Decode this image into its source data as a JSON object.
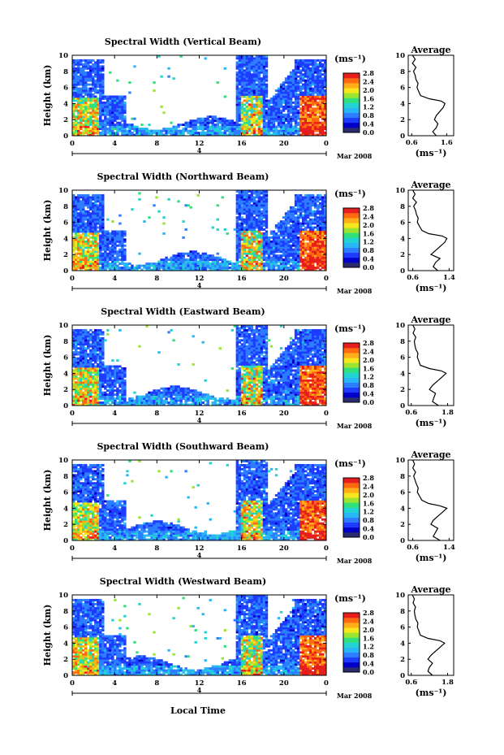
{
  "figure": {
    "xlabel": "Local Time",
    "date_label": "Mar 2008",
    "day_label": "4",
    "cbar_unit": "(ms⁻¹)",
    "avg_title": "Average",
    "avg_unit": "(ms⁻¹)",
    "ylabel": "Height (km)"
  },
  "colors": {
    "colormap": [
      "#2a2a6e",
      "#0000c8",
      "#1e3cff",
      "#2c7dff",
      "#29b6f6",
      "#22d3d3",
      "#31e07a",
      "#9be431",
      "#f5e61e",
      "#ffae1a",
      "#ff6a10",
      "#e61e1e"
    ]
  },
  "chart_data": [
    {
      "type": "heatmap",
      "title": "Spectral Width (Vertical Beam)",
      "x_ticks": [
        "0",
        "4",
        "8",
        "12",
        "16",
        "20",
        "0"
      ],
      "y_ticks": [
        "0",
        "2",
        "4",
        "6",
        "8",
        "10"
      ],
      "xlim": [
        0,
        24
      ],
      "ylim": [
        0,
        10
      ],
      "colorbar": {
        "ticks": [
          "0.0",
          "0.4",
          "0.8",
          "1.2",
          "1.6",
          "2.0",
          "2.4",
          "2.8"
        ],
        "range": [
          0,
          2.8
        ]
      },
      "average_profile": {
        "x_ticks": [
          "0.6",
          "1.6"
        ],
        "xlim": [
          0.5,
          1.8
        ],
        "height": [
          0,
          0.5,
          1,
          1.5,
          2,
          2.5,
          3,
          3.5,
          4,
          4.3,
          4.6,
          5,
          5.5,
          6,
          6.5,
          7,
          7.5,
          8,
          8.5,
          9,
          9.5,
          10
        ],
        "value": [
          1.3,
          1.2,
          1.3,
          1.35,
          1.25,
          1.3,
          1.4,
          1.5,
          1.55,
          1.45,
          1.1,
          0.85,
          0.8,
          0.75,
          0.78,
          0.72,
          0.7,
          0.65,
          0.72,
          0.62,
          0.7,
          0.62
        ]
      }
    },
    {
      "type": "heatmap",
      "title": "Spectral Width (Northward Beam)",
      "x_ticks": [
        "0",
        "4",
        "8",
        "12",
        "16",
        "20",
        "0"
      ],
      "y_ticks": [
        "0",
        "2",
        "4",
        "6",
        "8",
        "10"
      ],
      "xlim": [
        0,
        24
      ],
      "ylim": [
        0,
        10
      ],
      "colorbar": {
        "ticks": [
          "0.0",
          "0.4",
          "0.8",
          "1.2",
          "1.6",
          "2.0",
          "2.4",
          "2.8"
        ],
        "range": [
          0,
          2.8
        ]
      },
      "average_profile": {
        "x_ticks": [
          "0.6",
          "1.4"
        ],
        "xlim": [
          0.5,
          1.5
        ],
        "height": [
          0,
          0.5,
          1,
          1.5,
          2,
          2.5,
          3,
          3.5,
          4,
          4.3,
          4.6,
          5,
          5.5,
          6,
          6.5,
          7,
          7.5,
          8,
          8.5,
          9,
          9.5,
          10
        ],
        "value": [
          1.15,
          1.05,
          1.1,
          1.2,
          1.0,
          1.1,
          1.2,
          1.3,
          1.35,
          1.25,
          0.95,
          0.8,
          0.75,
          0.7,
          0.72,
          0.68,
          0.66,
          0.62,
          0.68,
          0.6,
          0.65,
          0.6
        ]
      }
    },
    {
      "type": "heatmap",
      "title": "Spectral Width (Eastward Beam)",
      "x_ticks": [
        "0",
        "4",
        "8",
        "12",
        "16",
        "20",
        "0"
      ],
      "y_ticks": [
        "0",
        "2",
        "4",
        "6",
        "8",
        "10"
      ],
      "xlim": [
        0,
        24
      ],
      "ylim": [
        0,
        10
      ],
      "colorbar": {
        "ticks": [
          "0.0",
          "0.4",
          "0.8",
          "1.2",
          "1.6",
          "2.0",
          "2.4",
          "2.8"
        ],
        "range": [
          0,
          2.8
        ]
      },
      "average_profile": {
        "x_ticks": [
          "0.6",
          "1.8"
        ],
        "xlim": [
          0.5,
          2.0
        ],
        "height": [
          0,
          0.5,
          1,
          1.5,
          2,
          2.5,
          3,
          3.5,
          4,
          4.3,
          4.6,
          5,
          5.5,
          6,
          6.5,
          7,
          7.5,
          8,
          8.5,
          9,
          9.5,
          10
        ],
        "value": [
          1.5,
          1.3,
          1.35,
          1.4,
          1.2,
          1.3,
          1.45,
          1.6,
          1.75,
          1.6,
          1.2,
          0.9,
          0.85,
          0.8,
          0.82,
          0.75,
          0.72,
          0.7,
          0.75,
          0.66,
          0.72,
          0.65
        ]
      }
    },
    {
      "type": "heatmap",
      "title": "Spectral Width (Southward Beam)",
      "x_ticks": [
        "0",
        "4",
        "8",
        "12",
        "16",
        "20",
        "0"
      ],
      "y_ticks": [
        "0",
        "2",
        "4",
        "6",
        "8",
        "10"
      ],
      "xlim": [
        0,
        24
      ],
      "ylim": [
        0,
        10
      ],
      "colorbar": {
        "ticks": [
          "0.0",
          "0.4",
          "0.8",
          "1.2",
          "1.6",
          "2.0",
          "2.4",
          "2.8"
        ],
        "range": [
          0,
          2.8
        ]
      },
      "average_profile": {
        "x_ticks": [
          "0.6",
          "1.4"
        ],
        "xlim": [
          0.5,
          1.5
        ],
        "height": [
          0,
          0.5,
          1,
          1.5,
          2,
          2.5,
          3,
          3.5,
          4,
          4.3,
          4.6,
          5,
          5.5,
          6,
          6.5,
          7,
          7.5,
          8,
          8.5,
          9,
          9.5,
          10
        ],
        "value": [
          1.2,
          1.05,
          1.1,
          1.15,
          1.0,
          1.05,
          1.15,
          1.25,
          1.35,
          1.2,
          0.95,
          0.8,
          0.75,
          0.7,
          0.72,
          0.68,
          0.65,
          0.62,
          0.66,
          0.6,
          0.64,
          0.6
        ]
      }
    },
    {
      "type": "heatmap",
      "title": "Spectral Width (Westward Beam)",
      "x_ticks": [
        "0",
        "4",
        "8",
        "12",
        "16",
        "20",
        "0"
      ],
      "y_ticks": [
        "0",
        "2",
        "4",
        "6",
        "8",
        "10"
      ],
      "xlim": [
        0,
        24
      ],
      "ylim": [
        0,
        10
      ],
      "colorbar": {
        "ticks": [
          "0.0",
          "0.4",
          "0.8",
          "1.2",
          "1.6",
          "2.0",
          "2.4",
          "2.8"
        ],
        "range": [
          0,
          2.8
        ]
      },
      "average_profile": {
        "x_ticks": [
          "0.6",
          "1.8"
        ],
        "xlim": [
          0.5,
          2.0
        ],
        "height": [
          0,
          0.5,
          1,
          1.5,
          2,
          2.5,
          3,
          3.5,
          4,
          4.3,
          4.6,
          5,
          5.5,
          6,
          6.5,
          7,
          7.5,
          8,
          8.5,
          9,
          9.5,
          10
        ],
        "value": [
          1.3,
          1.15,
          1.2,
          1.3,
          1.15,
          1.25,
          1.4,
          1.55,
          1.7,
          1.55,
          1.15,
          0.9,
          0.85,
          0.8,
          0.82,
          0.75,
          0.72,
          0.7,
          0.74,
          0.66,
          0.7,
          0.64
        ]
      }
    }
  ]
}
